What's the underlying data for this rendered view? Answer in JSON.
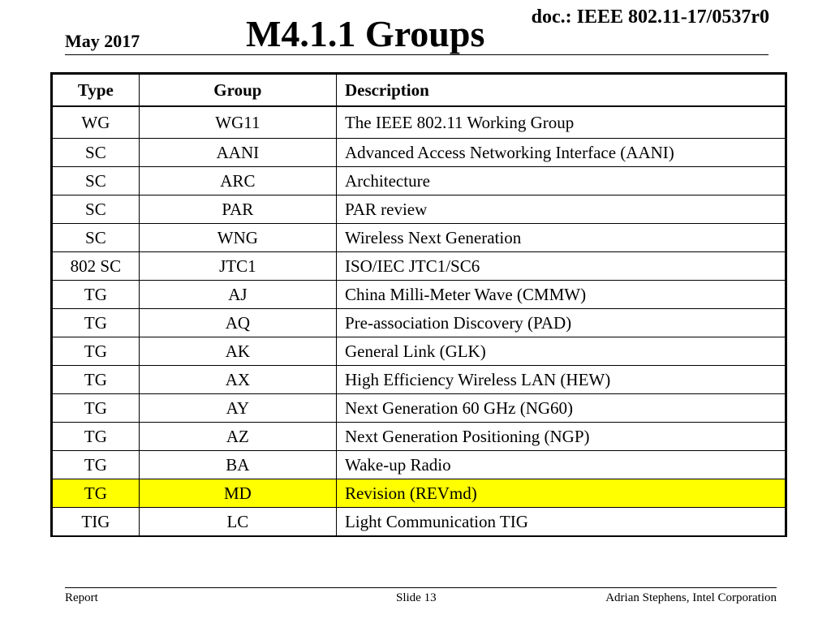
{
  "header": {
    "doc_id": "doc.: IEEE 802.11-17/0537r0",
    "date": "May 2017",
    "title": "M4.1.1 Groups"
  },
  "table": {
    "columns": [
      "Type",
      "Group",
      "Description"
    ],
    "rows": [
      {
        "type": "WG",
        "group": "WG11",
        "description": "The IEEE 802.11 Working Group",
        "highlighted": false
      },
      {
        "type": "SC",
        "group": "AANI",
        "description": "Advanced Access Networking Interface (AANI)",
        "highlighted": false
      },
      {
        "type": "SC",
        "group": "ARC",
        "description": "Architecture",
        "highlighted": false
      },
      {
        "type": "SC",
        "group": "PAR",
        "description": "PAR review",
        "highlighted": false
      },
      {
        "type": "SC",
        "group": "WNG",
        "description": "Wireless Next Generation",
        "highlighted": false
      },
      {
        "type": "802 SC",
        "group": "JTC1",
        "description": "ISO/IEC JTC1/SC6",
        "highlighted": false
      },
      {
        "type": "TG",
        "group": "AJ",
        "description": "China Milli-Meter Wave (CMMW)",
        "highlighted": false
      },
      {
        "type": "TG",
        "group": "AQ",
        "description": "Pre-association Discovery (PAD)",
        "highlighted": false
      },
      {
        "type": "TG",
        "group": "AK",
        "description": "General Link (GLK)",
        "highlighted": false
      },
      {
        "type": "TG",
        "group": "AX",
        "description": "High Efficiency Wireless LAN (HEW)",
        "highlighted": false
      },
      {
        "type": "TG",
        "group": "AY",
        "description": "Next Generation 60 GHz (NG60)",
        "highlighted": false
      },
      {
        "type": "TG",
        "group": "AZ",
        "description": "Next Generation Positioning (NGP)",
        "highlighted": false
      },
      {
        "type": "TG",
        "group": "BA",
        "description": "Wake-up Radio",
        "highlighted": false
      },
      {
        "type": "TG",
        "group": "MD",
        "description": "Revision (REVmd)",
        "highlighted": true
      },
      {
        "type": "TIG",
        "group": "LC",
        "description": "Light Communication TIG",
        "highlighted": false
      }
    ],
    "highlight_color": "#ffff00"
  },
  "footer": {
    "left": "Report",
    "center": "Slide 13",
    "right": "Adrian Stephens, Intel Corporation"
  }
}
